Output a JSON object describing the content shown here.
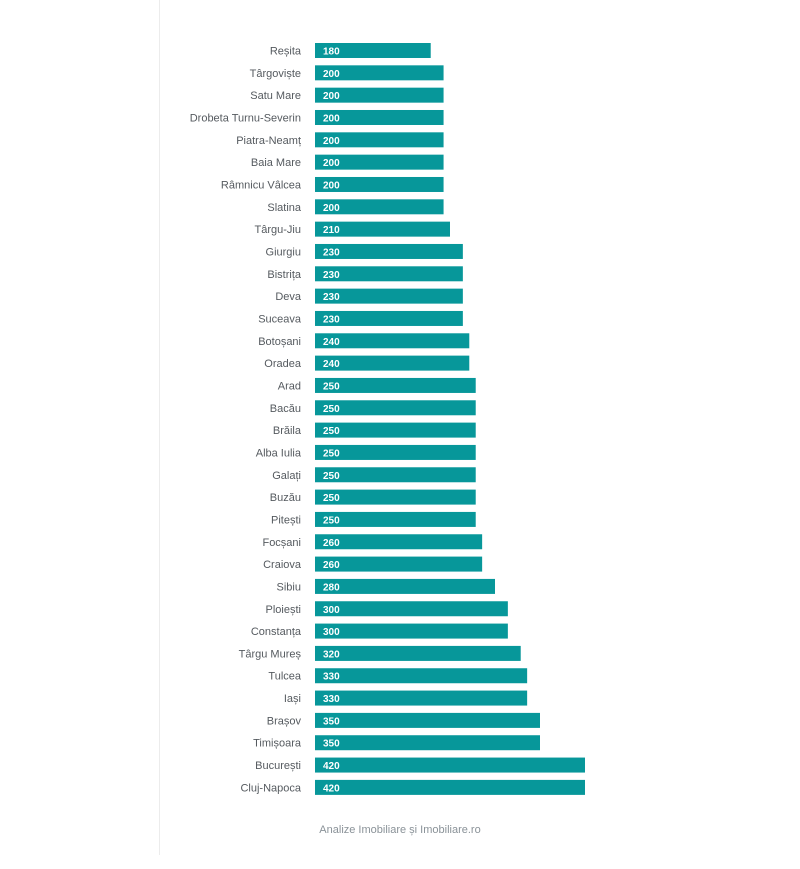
{
  "chart_data": {
    "type": "bar",
    "orientation": "horizontal",
    "title": "",
    "xlabel": "",
    "ylabel": "",
    "xlim": [
      0,
      420
    ],
    "grid": false,
    "legend": "none",
    "bar_color": "#07979a",
    "label_color": "#555a5f",
    "value_label_color": "#ffffff",
    "categories": [
      "Reșita",
      "Târgoviște",
      "Satu Mare",
      "Drobeta Turnu-Severin",
      "Piatra-Neamț",
      "Baia Mare",
      "Râmnicu Vâlcea",
      "Slatina",
      "Târgu-Jiu",
      "Giurgiu",
      "Bistrița",
      "Deva",
      "Suceava",
      "Botoșani",
      "Oradea",
      "Arad",
      "Bacău",
      "Brăila",
      "Alba Iulia",
      "Galați",
      "Buzău",
      "Pitești",
      "Focșani",
      "Craiova",
      "Sibiu",
      "Ploiești",
      "Constanța",
      "Târgu Mureș",
      "Tulcea",
      "Iași",
      "Brașov",
      "Timișoara",
      "București",
      "Cluj-Napoca"
    ],
    "values": [
      180,
      200,
      200,
      200,
      200,
      200,
      200,
      200,
      210,
      230,
      230,
      230,
      230,
      240,
      240,
      250,
      250,
      250,
      250,
      250,
      250,
      250,
      260,
      260,
      280,
      300,
      300,
      320,
      330,
      330,
      350,
      350,
      420,
      420
    ]
  },
  "footer": {
    "source": "Analize Imobiliare și Imobiliare.ro"
  }
}
